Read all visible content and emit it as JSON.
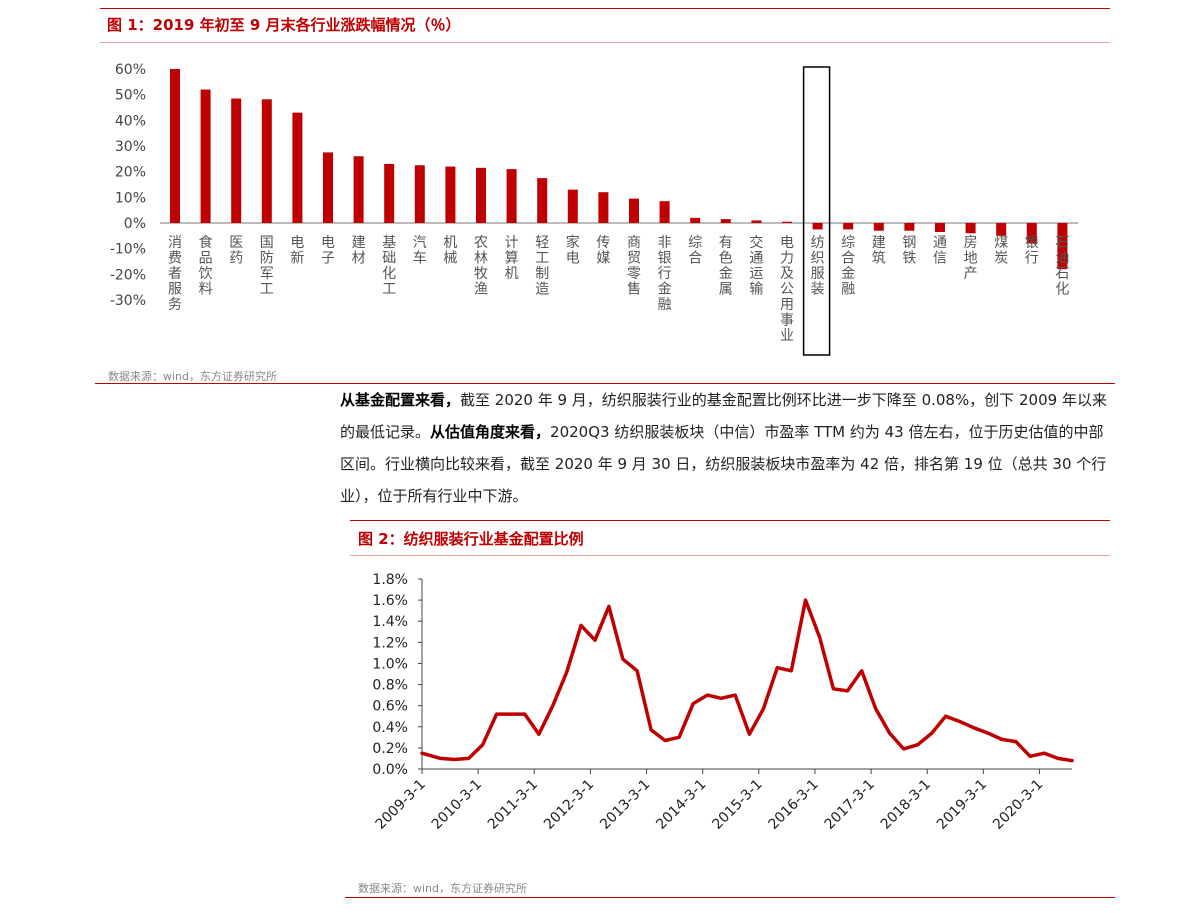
{
  "fig1": {
    "title": "图 1：2019 年初至 9 月末各行业涨跌幅情况（％）",
    "source": "数据来源：wind，东方证券研究所",
    "highlight_index": 21
  },
  "paragraph": {
    "bold1": "从基金配置来看，",
    "text1": "截至 2020 年 9 月，纺织服装行业的基金配置比例环比进一步下降至 0.08%，创下 2009 年以来的最低记录。",
    "bold2": "从估值角度来看，",
    "text2": "2020Q3 纺织服装板块（中信）市盈率 TTM 约为 43 倍左右，位于历史估值的中部区间。行业横向比较来看，截至 2020 年 9 月 30 日，纺织服装板块市盈率为 42 倍，排名第 19 位（总共 30 个行业），位于所有行业中下游。"
  },
  "fig2": {
    "title": "图 2：纺织服装行业基金配置比例",
    "source": "数据来源：wind，东方证券研究所"
  },
  "colors": {
    "accent": "#c00000",
    "bar": "#c00000",
    "line": "#c00000",
    "axis": "#555555"
  },
  "chart_data": [
    {
      "type": "bar",
      "categories": [
        "消费者服务",
        "食品饮料",
        "医药",
        "国防军工",
        "电新",
        "电子",
        "建材",
        "基础化工",
        "汽车",
        "机械",
        "农林牧渔",
        "计算机",
        "轻工制造",
        "家电",
        "传媒",
        "商贸零售",
        "非银行金融",
        "综合",
        "有色金属",
        "交通运输",
        "电力及公用事业",
        "纺织服装",
        "综合金融",
        "建筑",
        "钢铁",
        "通信",
        "房地产",
        "煤炭",
        "银行",
        "石油石化"
      ],
      "values": [
        60,
        52,
        48.5,
        48.2,
        43,
        27.5,
        26,
        23,
        22.5,
        22,
        21.5,
        21,
        17.5,
        13,
        12,
        9.5,
        8.5,
        2,
        1.5,
        1,
        0.5,
        -2.5,
        -2.5,
        -3,
        -3,
        -3.5,
        -4,
        -5,
        -8,
        -18
      ],
      "ylim": [
        -30,
        60
      ],
      "yticks": [
        "60%",
        "50%",
        "40%",
        "30%",
        "20%",
        "10%",
        "0%",
        "-10%",
        "-20%",
        "-30%"
      ]
    },
    {
      "type": "line",
      "x": [
        "2009-3-1",
        "2009-6-30",
        "2009-9-30",
        "2009-12-31",
        "2010-3-31",
        "2010-6-30",
        "2010-9-30",
        "2010-12-31",
        "2011-3-31",
        "2011-6-30",
        "2011-9-30",
        "2011-12-31",
        "2012-3-31",
        "2012-6-30",
        "2012-9-30",
        "2012-12-31",
        "2013-3-31",
        "2013-6-30",
        "2013-9-30",
        "2013-12-31",
        "2014-3-31",
        "2014-6-30",
        "2014-9-30",
        "2014-12-31",
        "2015-3-31",
        "2015-6-30",
        "2015-9-30",
        "2015-12-31",
        "2016-3-31",
        "2016-6-30",
        "2016-9-30",
        "2016-12-31",
        "2017-3-31",
        "2017-6-30",
        "2017-9-30",
        "2017-12-31",
        "2018-3-31",
        "2018-6-30",
        "2018-9-30",
        "2018-12-31",
        "2019-3-31",
        "2019-6-30",
        "2019-9-30",
        "2019-12-31",
        "2020-3-31",
        "2020-6-30",
        "2020-9-30"
      ],
      "values": [
        0.15,
        0.1,
        0.09,
        0.1,
        0.23,
        0.52,
        0.52,
        0.52,
        0.33,
        0.6,
        0.92,
        1.36,
        1.22,
        1.54,
        1.04,
        0.93,
        0.37,
        0.27,
        0.3,
        0.62,
        0.7,
        0.67,
        0.7,
        0.33,
        0.57,
        0.96,
        0.93,
        1.6,
        1.25,
        0.76,
        0.74,
        0.93,
        0.57,
        0.34,
        0.19,
        0.23,
        0.34,
        0.5,
        0.45,
        0.39,
        0.34,
        0.28,
        0.26,
        0.12,
        0.15,
        0.1,
        0.08
      ],
      "xticks": [
        "2009-3-1",
        "2010-3-1",
        "2011-3-1",
        "2012-3-1",
        "2013-3-1",
        "2014-3-1",
        "2015-3-1",
        "2016-3-1",
        "2017-3-1",
        "2018-3-1",
        "2019-3-1",
        "2020-3-1"
      ],
      "yticks": [
        "1.8%",
        "1.6%",
        "1.4%",
        "1.2%",
        "1.0%",
        "0.8%",
        "0.6%",
        "0.4%",
        "0.2%",
        "0.0%"
      ],
      "ylim": [
        0,
        1.8
      ]
    }
  ]
}
